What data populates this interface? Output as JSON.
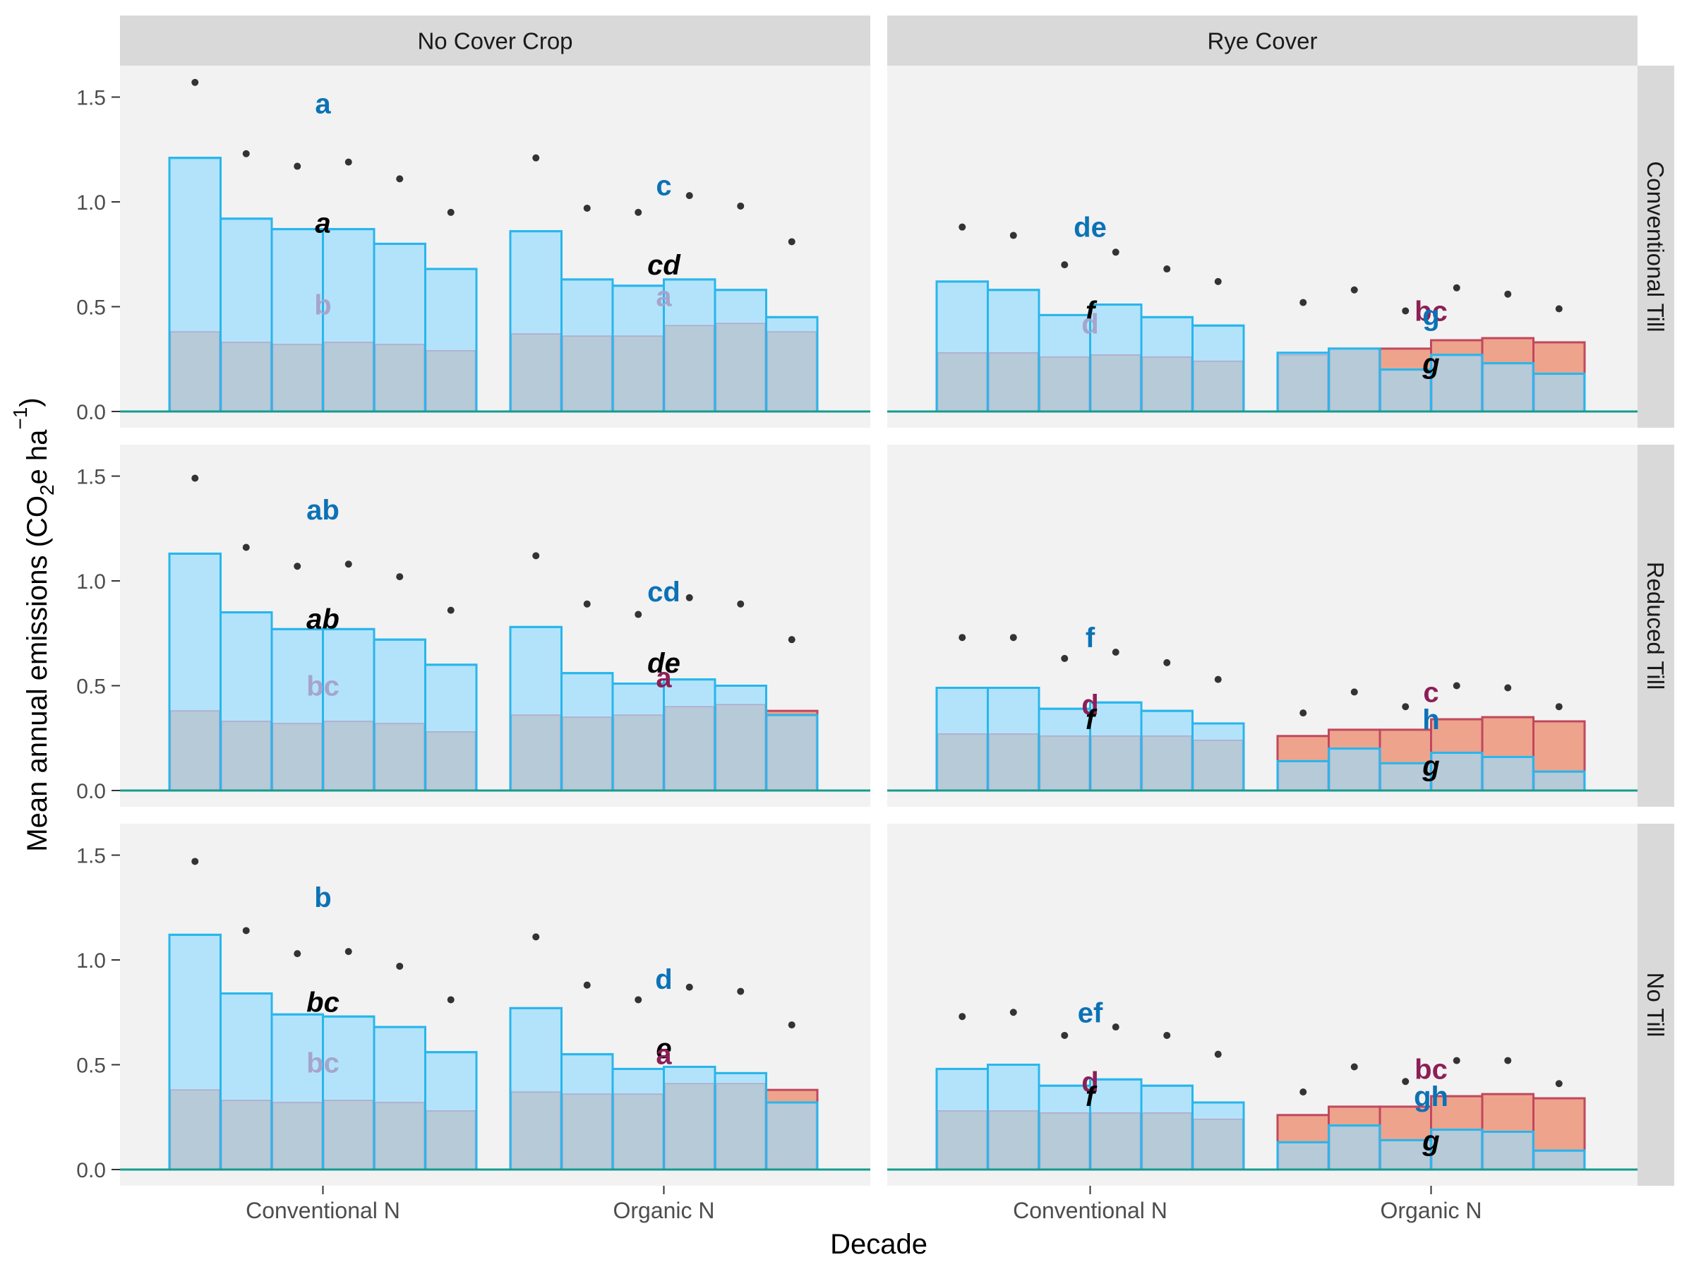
{
  "chart_data": {
    "type": "bar",
    "xlabel": "Decade",
    "ylabel": {
      "main": "Mean annual emissions (CO",
      "sub": "2",
      "mid": "e ha",
      "sup": "−1",
      "end": ")"
    },
    "ylim": [
      0,
      1.65
    ],
    "yticks": [
      "0.0",
      "0.5",
      "1.0",
      "1.5"
    ],
    "columns": [
      "No Cover Crop",
      "Rye Cover"
    ],
    "rows": [
      "Conventional Till",
      "Reduced Till",
      "No Till"
    ],
    "groups": [
      "Conventional N",
      "Organic N"
    ],
    "colors": {
      "blue_fill": "#b3e3fa",
      "blue_line": "#29b6ec",
      "grey_fill": "#b6c8d6",
      "red_fill": "#eea38c",
      "red_line": "#c0485e",
      "points": "#333333",
      "baseline": "#169b8e",
      "panel_bg": "#f2f2f2",
      "strip_bg": "#d9d9d9",
      "letter_blue": "#0b72b6",
      "letter_grey": "#a5a5cc",
      "letter_maroon": "#8c1f56",
      "letter_black": "#000000"
    },
    "panels": [
      {
        "row": 0,
        "col": 0,
        "groups": [
          {
            "total": [
              1.21,
              0.92,
              0.87,
              0.87,
              0.8,
              0.68
            ],
            "grey": [
              0.38,
              0.33,
              0.32,
              0.33,
              0.32,
              0.29
            ],
            "red": [
              null,
              null,
              null,
              null,
              null,
              null
            ],
            "points": [
              1.57,
              1.23,
              1.17,
              1.19,
              1.11,
              0.95
            ],
            "letters": [
              {
                "text": "a",
                "y": 1.47,
                "color": "letter_blue",
                "italic": false
              },
              {
                "text": "a",
                "y": 0.9,
                "color": "letter_black",
                "italic": true
              },
              {
                "text": "b",
                "y": 0.51,
                "color": "letter_grey",
                "italic": false
              }
            ]
          },
          {
            "total": [
              0.86,
              0.63,
              0.6,
              0.63,
              0.58,
              0.45
            ],
            "grey": [
              0.37,
              0.36,
              0.36,
              0.41,
              0.42,
              0.38
            ],
            "red": [
              null,
              null,
              null,
              null,
              null,
              null
            ],
            "points": [
              1.21,
              0.97,
              0.95,
              1.03,
              0.98,
              0.81
            ],
            "letters": [
              {
                "text": "c",
                "y": 1.08,
                "color": "letter_blue",
                "italic": false
              },
              {
                "text": "cd",
                "y": 0.7,
                "color": "letter_black",
                "italic": true
              },
              {
                "text": "a",
                "y": 0.55,
                "color": "letter_grey",
                "italic": false
              }
            ]
          }
        ]
      },
      {
        "row": 0,
        "col": 1,
        "groups": [
          {
            "total": [
              0.62,
              0.58,
              0.46,
              0.51,
              0.45,
              0.41
            ],
            "grey": [
              0.28,
              0.28,
              0.26,
              0.27,
              0.26,
              0.24
            ],
            "red": [
              null,
              null,
              null,
              null,
              null,
              null
            ],
            "points": [
              0.88,
              0.84,
              0.7,
              0.76,
              0.68,
              0.62
            ],
            "letters": [
              {
                "text": "de",
                "y": 0.88,
                "color": "letter_blue",
                "italic": false
              },
              {
                "text": "f",
                "y": 0.48,
                "color": "letter_black",
                "italic": true
              },
              {
                "text": "d",
                "y": 0.42,
                "color": "letter_grey",
                "italic": false
              }
            ]
          },
          {
            "total": [
              0.28,
              0.3,
              0.2,
              0.27,
              0.23,
              0.18
            ],
            "grey": [
              0.27,
              0.3,
              0.2,
              0.27,
              0.23,
              0.18
            ],
            "red": [
              0.27,
              0.3,
              0.3,
              0.34,
              0.35,
              0.33
            ],
            "points": [
              0.52,
              0.58,
              0.48,
              0.59,
              0.56,
              0.49
            ],
            "letters": [
              {
                "text": "bc",
                "y": 0.48,
                "color": "letter_maroon",
                "italic": false
              },
              {
                "text": "g",
                "y": 0.46,
                "color": "letter_blue",
                "italic": false
              },
              {
                "text": "g",
                "y": 0.23,
                "color": "letter_black",
                "italic": true
              }
            ]
          }
        ]
      },
      {
        "row": 1,
        "col": 0,
        "groups": [
          {
            "total": [
              1.13,
              0.85,
              0.77,
              0.77,
              0.72,
              0.6
            ],
            "grey": [
              0.38,
              0.33,
              0.32,
              0.33,
              0.32,
              0.28
            ],
            "red": [
              null,
              null,
              null,
              null,
              null,
              null
            ],
            "points": [
              1.49,
              1.16,
              1.07,
              1.08,
              1.02,
              0.86
            ],
            "letters": [
              {
                "text": "ab",
                "y": 1.34,
                "color": "letter_blue",
                "italic": false
              },
              {
                "text": "ab",
                "y": 0.82,
                "color": "letter_black",
                "italic": true
              },
              {
                "text": "bc",
                "y": 0.5,
                "color": "letter_grey",
                "italic": false
              }
            ]
          },
          {
            "total": [
              0.78,
              0.56,
              0.51,
              0.53,
              0.5,
              0.36
            ],
            "grey": [
              0.36,
              0.35,
              0.36,
              0.4,
              0.41,
              0.36
            ],
            "red": [
              null,
              null,
              null,
              null,
              null,
              0.38
            ],
            "points": [
              1.12,
              0.89,
              0.84,
              0.92,
              0.89,
              0.72
            ],
            "letters": [
              {
                "text": "cd",
                "y": 0.95,
                "color": "letter_blue",
                "italic": false
              },
              {
                "text": "de",
                "y": 0.61,
                "color": "letter_black",
                "italic": true
              },
              {
                "text": "a",
                "y": 0.54,
                "color": "letter_maroon",
                "italic": false
              }
            ]
          }
        ]
      },
      {
        "row": 1,
        "col": 1,
        "groups": [
          {
            "total": [
              0.49,
              0.49,
              0.39,
              0.42,
              0.38,
              0.32
            ],
            "grey": [
              0.27,
              0.27,
              0.26,
              0.26,
              0.26,
              0.24
            ],
            "red": [
              null,
              null,
              null,
              null,
              null,
              null
            ],
            "points": [
              0.73,
              0.73,
              0.63,
              0.66,
              0.61,
              0.53
            ],
            "letters": [
              {
                "text": "f",
                "y": 0.73,
                "color": "letter_blue",
                "italic": false
              },
              {
                "text": "d",
                "y": 0.41,
                "color": "letter_maroon",
                "italic": false
              },
              {
                "text": "f",
                "y": 0.34,
                "color": "letter_black",
                "italic": true
              }
            ]
          },
          {
            "total": [
              0.14,
              0.2,
              0.13,
              0.18,
              0.16,
              0.09
            ],
            "grey": [
              0.14,
              0.2,
              0.13,
              0.18,
              0.16,
              0.09
            ],
            "red": [
              0.26,
              0.29,
              0.29,
              0.34,
              0.35,
              0.33
            ],
            "points": [
              0.37,
              0.47,
              0.4,
              0.5,
              0.49,
              0.4
            ],
            "letters": [
              {
                "text": "c",
                "y": 0.47,
                "color": "letter_maroon",
                "italic": false
              },
              {
                "text": "h",
                "y": 0.34,
                "color": "letter_blue",
                "italic": false
              },
              {
                "text": "g",
                "y": 0.12,
                "color": "letter_black",
                "italic": true
              }
            ]
          }
        ]
      },
      {
        "row": 2,
        "col": 0,
        "groups": [
          {
            "total": [
              1.12,
              0.84,
              0.74,
              0.73,
              0.68,
              0.56
            ],
            "grey": [
              0.38,
              0.33,
              0.32,
              0.33,
              0.32,
              0.28
            ],
            "red": [
              null,
              null,
              null,
              null,
              null,
              null
            ],
            "points": [
              1.47,
              1.14,
              1.03,
              1.04,
              0.97,
              0.81
            ],
            "letters": [
              {
                "text": "b",
                "y": 1.3,
                "color": "letter_blue",
                "italic": false
              },
              {
                "text": "bc",
                "y": 0.8,
                "color": "letter_black",
                "italic": true
              },
              {
                "text": "bc",
                "y": 0.51,
                "color": "letter_grey",
                "italic": false
              }
            ]
          },
          {
            "total": [
              0.77,
              0.55,
              0.48,
              0.49,
              0.46,
              0.32
            ],
            "grey": [
              0.37,
              0.36,
              0.36,
              0.41,
              0.41,
              0.32
            ],
            "red": [
              null,
              null,
              null,
              null,
              null,
              0.38
            ],
            "points": [
              1.11,
              0.88,
              0.81,
              0.87,
              0.85,
              0.69
            ],
            "letters": [
              {
                "text": "d",
                "y": 0.91,
                "color": "letter_blue",
                "italic": false
              },
              {
                "text": "e",
                "y": 0.58,
                "color": "letter_black",
                "italic": true
              },
              {
                "text": "a",
                "y": 0.55,
                "color": "letter_maroon",
                "italic": false
              }
            ]
          }
        ]
      },
      {
        "row": 2,
        "col": 1,
        "groups": [
          {
            "total": [
              0.48,
              0.5,
              0.4,
              0.43,
              0.4,
              0.32
            ],
            "grey": [
              0.28,
              0.28,
              0.27,
              0.27,
              0.27,
              0.24
            ],
            "red": [
              null,
              null,
              null,
              null,
              null,
              null
            ],
            "points": [
              0.73,
              0.75,
              0.64,
              0.68,
              0.64,
              0.55
            ],
            "letters": [
              {
                "text": "ef",
                "y": 0.75,
                "color": "letter_blue",
                "italic": false
              },
              {
                "text": "d",
                "y": 0.42,
                "color": "letter_maroon",
                "italic": false
              },
              {
                "text": "f",
                "y": 0.35,
                "color": "letter_black",
                "italic": true
              }
            ]
          },
          {
            "total": [
              0.13,
              0.21,
              0.14,
              0.19,
              0.18,
              0.09
            ],
            "grey": [
              0.13,
              0.21,
              0.14,
              0.19,
              0.18,
              0.09
            ],
            "red": [
              0.26,
              0.3,
              0.3,
              0.35,
              0.36,
              0.34
            ],
            "points": [
              0.37,
              0.49,
              0.42,
              0.52,
              0.52,
              0.41
            ],
            "letters": [
              {
                "text": "bc",
                "y": 0.48,
                "color": "letter_maroon",
                "italic": false
              },
              {
                "text": "gh",
                "y": 0.35,
                "color": "letter_blue",
                "italic": false
              },
              {
                "text": "g",
                "y": 0.14,
                "color": "letter_black",
                "italic": true
              }
            ]
          }
        ]
      }
    ]
  }
}
